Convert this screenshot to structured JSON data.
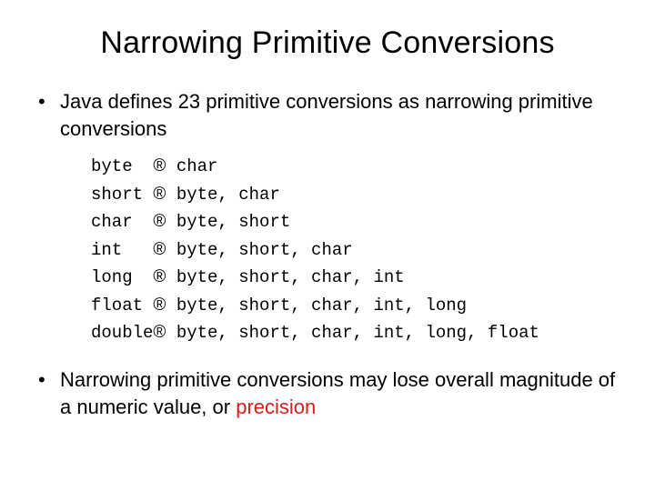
{
  "title": "Narrowing Primitive Conversions",
  "bullet1": "Java defines 23 primitive conversions as narrowing primitive conversions",
  "bullet2_pre": "Narrowing primitive conversions may lose overall magnitude of a numeric value, or ",
  "bullet2_hl": "precision",
  "code": {
    "rows": [
      {
        "src": "byte  ",
        "dst": "char"
      },
      {
        "src": "short ",
        "dst": "byte, char"
      },
      {
        "src": "char  ",
        "dst": "byte, short"
      },
      {
        "src": "int   ",
        "dst": "byte, short, char"
      },
      {
        "src": "long  ",
        "dst": "byte, short, char, int"
      },
      {
        "src": "float ",
        "dst": "byte, short, char, int, long"
      },
      {
        "src": "double",
        "dst": "byte, short, char, int, long, float"
      }
    ],
    "arrow_glyph": "®"
  },
  "style": {
    "title_fontsize": 34,
    "body_fontsize": 22,
    "code_fontsize": 19,
    "code_font": "Courier New",
    "body_font": "Arial",
    "text_color": "#000000",
    "highlight_color": "#d02020",
    "background_color": "#ffffff",
    "slide_width": 720,
    "slide_height": 540
  }
}
